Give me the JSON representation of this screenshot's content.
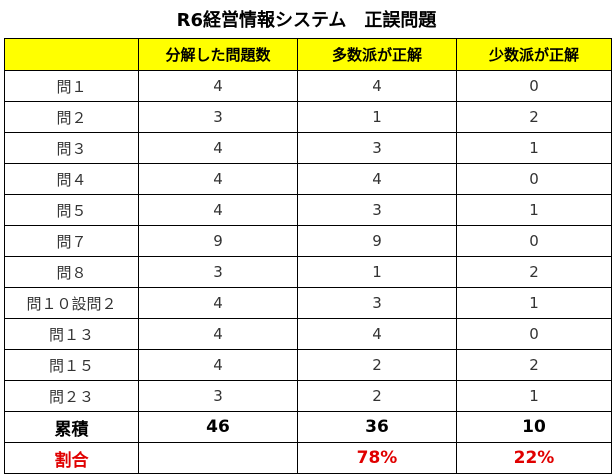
{
  "title": "R6経営情報システム　正誤問題",
  "headers": [
    "",
    "分解した問題数",
    "多数派が正解",
    "少数派が正解"
  ],
  "rows": [
    [
      "問１",
      "4",
      "4",
      "0"
    ],
    [
      "問２",
      "3",
      "1",
      "2"
    ],
    [
      "問３",
      "4",
      "3",
      "1"
    ],
    [
      "問４",
      "4",
      "4",
      "0"
    ],
    [
      "問５",
      "4",
      "3",
      "1"
    ],
    [
      "問７",
      "9",
      "9",
      "0"
    ],
    [
      "問８",
      "3",
      "1",
      "2"
    ],
    [
      "問１０設問２",
      "4",
      "3",
      "1"
    ],
    [
      "問１３",
      "4",
      "4",
      "0"
    ],
    [
      "問１５",
      "4",
      "2",
      "2"
    ],
    [
      "問２３",
      "3",
      "2",
      "1"
    ]
  ],
  "total": [
    "累積",
    "46",
    "36",
    "10"
  ],
  "ratio": [
    "割合",
    "",
    "78%",
    "22%"
  ],
  "colors": {
    "header_bg": "#ffff00",
    "ratio_text": "#e00000"
  }
}
